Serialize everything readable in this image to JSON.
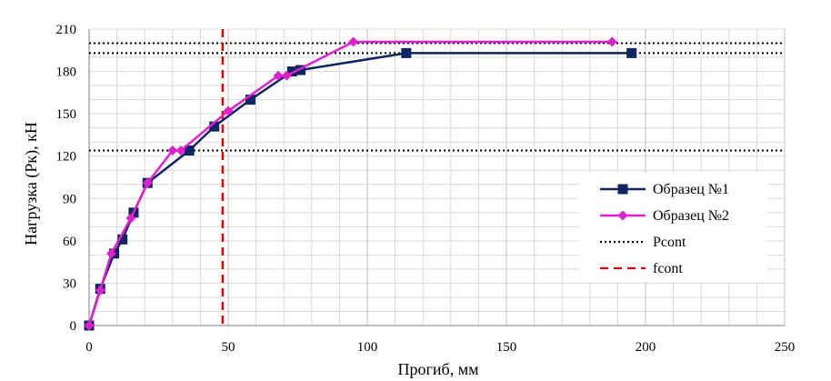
{
  "chart_data": {
    "type": "line",
    "xlabel": "Прогиб, мм",
    "ylabel": "Нагрузка (Рк), кН",
    "xlim": [
      0,
      250
    ],
    "ylim": [
      0,
      210
    ],
    "x_ticks": [
      0,
      50,
      100,
      150,
      200,
      250
    ],
    "y_ticks": [
      0,
      30,
      60,
      90,
      120,
      150,
      180,
      210
    ],
    "grid": "on",
    "legend_position": "right",
    "series": [
      {
        "name": "Образец №1",
        "color": "#0d2560",
        "marker": "square",
        "x": [
          0,
          4,
          9,
          12,
          16,
          21,
          36,
          45,
          58,
          73,
          76,
          114,
          195
        ],
        "y": [
          0,
          26,
          51,
          61,
          80,
          101,
          124,
          141,
          160,
          180,
          181,
          193,
          193
        ]
      },
      {
        "name": "Образец №2",
        "color": "#e020d0",
        "marker": "diamond",
        "x": [
          0,
          4,
          8,
          15,
          21,
          30,
          33,
          50,
          68,
          71,
          95,
          188
        ],
        "y": [
          0,
          25,
          51,
          76,
          101,
          124,
          124,
          152,
          177,
          177,
          201,
          201
        ]
      }
    ],
    "reference_lines": [
      {
        "name": "Pcont",
        "orientation": "horizontal",
        "style": "dotted",
        "color": "#000000",
        "values": [
          124,
          193,
          200
        ]
      },
      {
        "name": "fcont",
        "orientation": "vertical",
        "style": "dashed",
        "color": "#e00000",
        "values": [
          48
        ]
      }
    ]
  }
}
